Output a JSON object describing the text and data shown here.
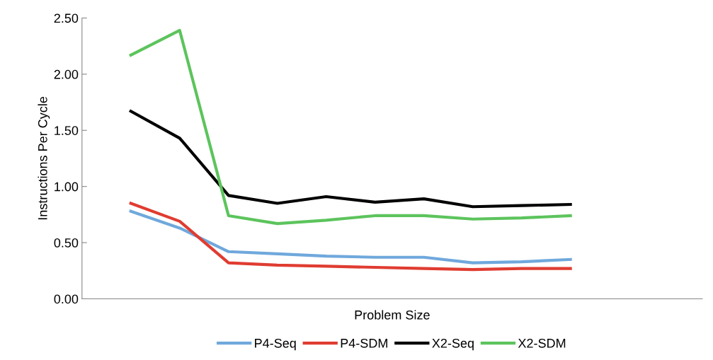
{
  "chart_data": {
    "type": "line",
    "xlabel": "Problem Size",
    "ylabel": "Instructions Per Cycle",
    "categories": [
      null,
      null,
      null,
      null,
      null,
      null,
      null,
      null,
      null,
      null
    ],
    "series": [
      {
        "name": "P4-Seq",
        "color": "#6fa8dc",
        "values": [
          0.78,
          0.63,
          0.42,
          0.4,
          0.38,
          0.37,
          0.37,
          0.32,
          0.33,
          0.35
        ]
      },
      {
        "name": "P4-SDM",
        "color": "#e03c31",
        "values": [
          0.85,
          0.69,
          0.32,
          0.3,
          0.29,
          0.28,
          0.27,
          0.26,
          0.27,
          0.27
        ]
      },
      {
        "name": "X2-Seq",
        "color": "#000000",
        "values": [
          1.67,
          1.43,
          0.92,
          0.85,
          0.91,
          0.86,
          0.89,
          0.82,
          0.83,
          0.84
        ]
      },
      {
        "name": "X2-SDM",
        "color": "#5cc45c",
        "values": [
          2.17,
          2.39,
          0.74,
          0.67,
          0.7,
          0.74,
          0.74,
          0.71,
          0.72,
          0.74
        ]
      }
    ],
    "ylim": [
      0,
      2.5
    ],
    "yticks": [
      {
        "value": 0,
        "label": "0.00"
      },
      {
        "value": 0.5,
        "label": "0.50"
      },
      {
        "value": 1.0,
        "label": "1.00"
      },
      {
        "value": 1.5,
        "label": "1.50"
      },
      {
        "value": 2.0,
        "label": "2.00"
      },
      {
        "value": 2.5,
        "label": "2.50"
      }
    ],
    "grid": false,
    "legend": "bottom",
    "marker": "none",
    "line_style": "solid"
  }
}
